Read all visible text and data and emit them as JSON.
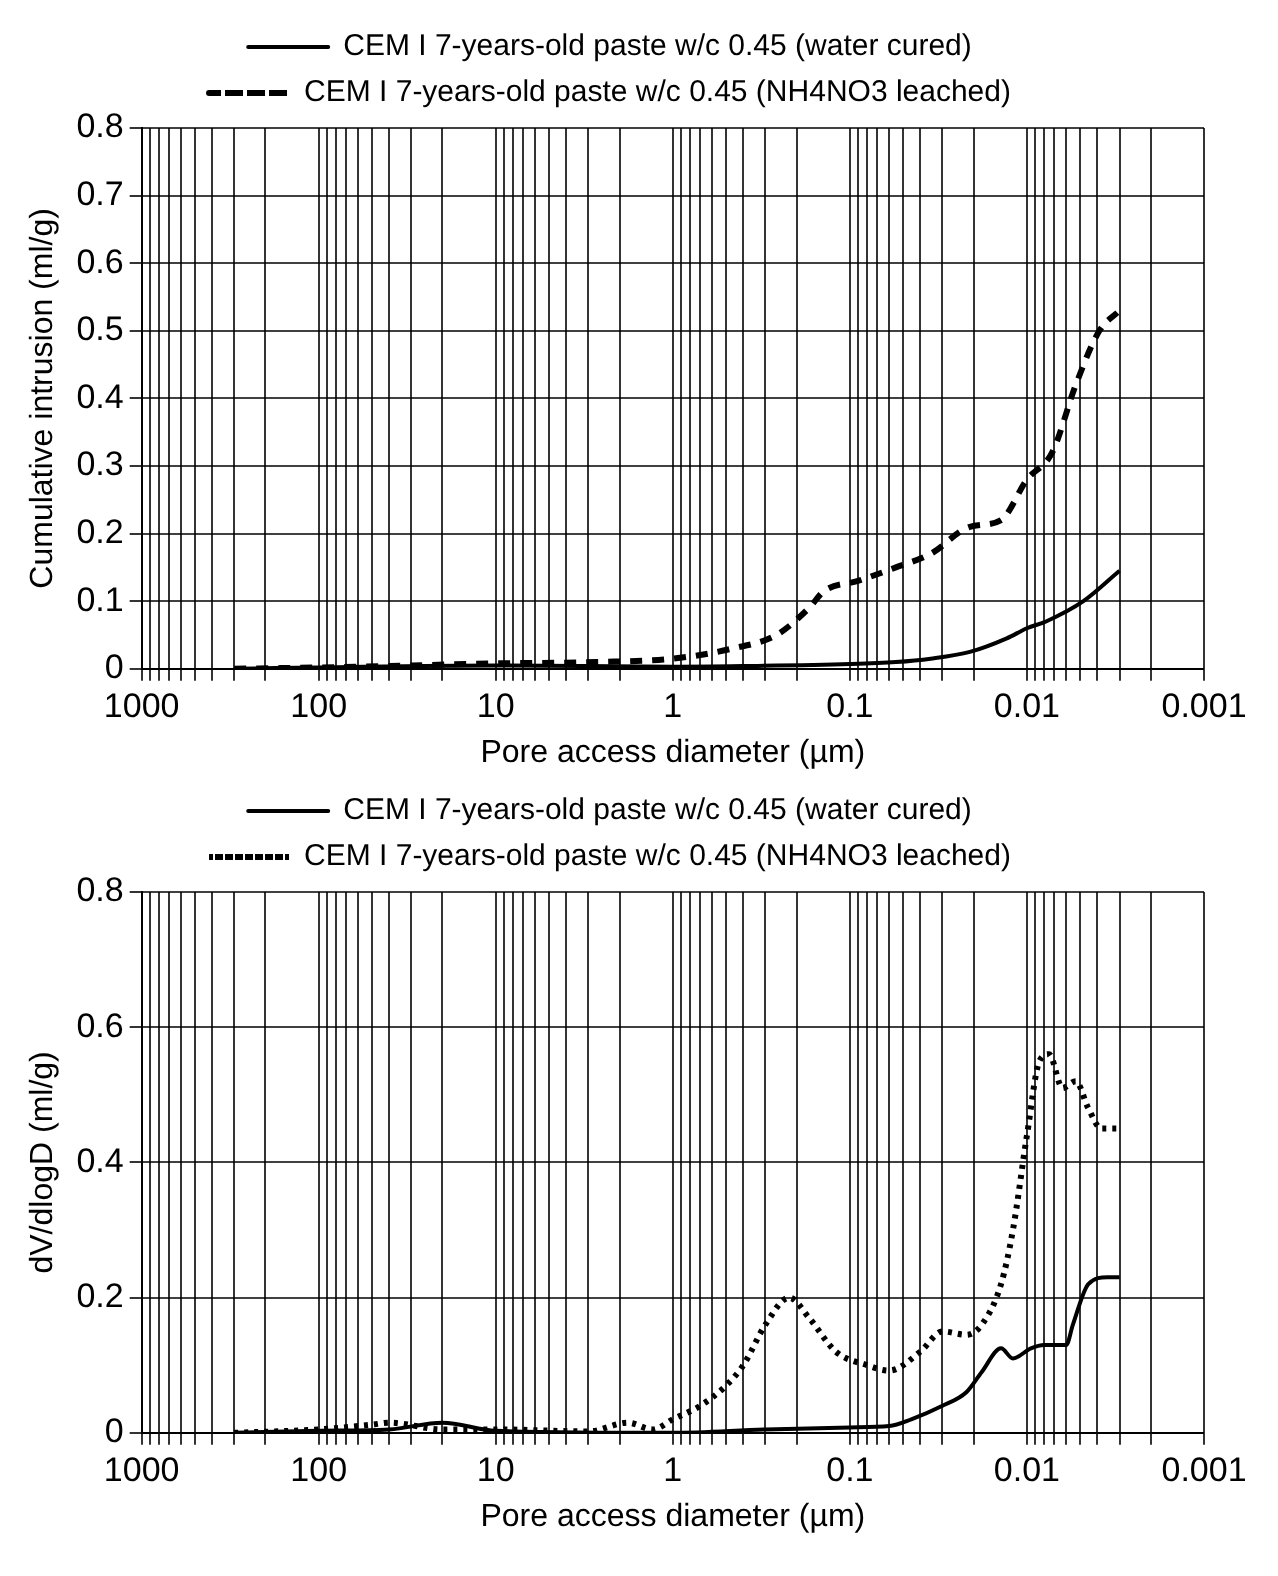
{
  "chart_data": [
    {
      "type": "line",
      "xlabel": "Pore access diameter (µm)",
      "ylabel": "Cumulative intrusion (ml/g)",
      "log": "x",
      "grid": true,
      "legend": "top",
      "marker": "none",
      "xlim": [
        1000,
        0.001
      ],
      "ylim": [
        0,
        0.8
      ],
      "xticks": [
        1000,
        {
          "value": 900,
          "label": null
        },
        {
          "value": 800,
          "label": null
        },
        {
          "value": 700,
          "label": null
        },
        {
          "value": 600,
          "label": null
        },
        {
          "value": 500,
          "label": null
        },
        {
          "value": 400,
          "label": null
        },
        {
          "value": 300,
          "label": null
        },
        {
          "value": 200,
          "label": null
        },
        100,
        {
          "value": 90,
          "label": null
        },
        {
          "value": 80,
          "label": null
        },
        {
          "value": 70,
          "label": null
        },
        {
          "value": 60,
          "label": null
        },
        {
          "value": 50,
          "label": null
        },
        {
          "value": 40,
          "label": null
        },
        {
          "value": 30,
          "label": null
        },
        {
          "value": 20,
          "label": null
        },
        10,
        {
          "value": 9,
          "label": null
        },
        {
          "value": 8,
          "label": null
        },
        {
          "value": 7,
          "label": null
        },
        {
          "value": 6,
          "label": null
        },
        {
          "value": 5,
          "label": null
        },
        {
          "value": 4,
          "label": null
        },
        {
          "value": 3,
          "label": null
        },
        {
          "value": 2,
          "label": null
        },
        1,
        {
          "value": 0.9,
          "label": null
        },
        {
          "value": 0.8,
          "label": null
        },
        {
          "value": 0.7,
          "label": null
        },
        {
          "value": 0.6,
          "label": null
        },
        {
          "value": 0.5,
          "label": null
        },
        {
          "value": 0.4,
          "label": null
        },
        {
          "value": 0.3,
          "label": null
        },
        {
          "value": 0.2,
          "label": null
        },
        0.1,
        {
          "value": 0.09,
          "label": null
        },
        {
          "value": 0.08,
          "label": null
        },
        {
          "value": 0.07,
          "label": null
        },
        {
          "value": 0.06,
          "label": null
        },
        {
          "value": 0.05,
          "label": null
        },
        {
          "value": 0.04,
          "label": null
        },
        {
          "value": 0.03,
          "label": null
        },
        {
          "value": 0.02,
          "label": null
        },
        0.01,
        {
          "value": 0.009,
          "label": null
        },
        {
          "value": 0.008,
          "label": null
        },
        {
          "value": 0.007,
          "label": null
        },
        {
          "value": 0.006,
          "label": null
        },
        {
          "value": 0.005,
          "label": null
        },
        {
          "value": 0.004,
          "label": null
        },
        {
          "value": 0.003,
          "label": null
        },
        {
          "value": 0.002,
          "label": null
        },
        0.001
      ],
      "yticks": [
        0,
        0.1,
        0.2,
        0.3,
        0.4,
        0.5,
        0.6,
        0.7,
        0.8
      ],
      "series": [
        {
          "name": "CEM I 7-years-old paste w/c 0.45 (water cured)",
          "color": "#000000",
          "line_style": "solid",
          "x": [
            300,
            100,
            10,
            1,
            0.4,
            0.1,
            0.055,
            0.035,
            0.021,
            0.013,
            0.01,
            0.0078,
            0.0048,
            0.003
          ],
          "values": [
            0,
            0.002,
            0.005,
            0.003,
            0.004,
            0.007,
            0.01,
            0.015,
            0.025,
            0.045,
            0.06,
            0.07,
            0.1,
            0.145
          ]
        },
        {
          "name": "CEM I 7-years-old paste w/c 0.45 (NH4NO3 leached)",
          "color": "#000000",
          "line_style": "dashed",
          "x": [
            300,
            100,
            30,
            10,
            2.7,
            1,
            0.46,
            0.26,
            0.17,
            0.14,
            0.09,
            0.055,
            0.035,
            0.021,
            0.014,
            0.01,
            0.0072,
            0.0053,
            0.0039,
            0.003
          ],
          "values": [
            0,
            0.002,
            0.005,
            0.008,
            0.01,
            0.015,
            0.03,
            0.05,
            0.09,
            0.115,
            0.13,
            0.15,
            0.17,
            0.21,
            0.22,
            0.28,
            0.32,
            0.42,
            0.5,
            0.53
          ]
        }
      ]
    },
    {
      "type": "line",
      "xlabel": "Pore access diameter (µm)",
      "ylabel": "dV/dlogD (ml/g)",
      "log": "x",
      "grid": true,
      "legend": "top",
      "marker": "none",
      "xlim": [
        1000,
        0.001
      ],
      "ylim": [
        0,
        0.8
      ],
      "xticks": [
        1000,
        {
          "value": 900,
          "label": null
        },
        {
          "value": 800,
          "label": null
        },
        {
          "value": 700,
          "label": null
        },
        {
          "value": 600,
          "label": null
        },
        {
          "value": 500,
          "label": null
        },
        {
          "value": 400,
          "label": null
        },
        {
          "value": 300,
          "label": null
        },
        {
          "value": 200,
          "label": null
        },
        100,
        {
          "value": 90,
          "label": null
        },
        {
          "value": 80,
          "label": null
        },
        {
          "value": 70,
          "label": null
        },
        {
          "value": 60,
          "label": null
        },
        {
          "value": 50,
          "label": null
        },
        {
          "value": 40,
          "label": null
        },
        {
          "value": 30,
          "label": null
        },
        {
          "value": 20,
          "label": null
        },
        10,
        {
          "value": 9,
          "label": null
        },
        {
          "value": 8,
          "label": null
        },
        {
          "value": 7,
          "label": null
        },
        {
          "value": 6,
          "label": null
        },
        {
          "value": 5,
          "label": null
        },
        {
          "value": 4,
          "label": null
        },
        {
          "value": 3,
          "label": null
        },
        {
          "value": 2,
          "label": null
        },
        1,
        {
          "value": 0.9,
          "label": null
        },
        {
          "value": 0.8,
          "label": null
        },
        {
          "value": 0.7,
          "label": null
        },
        {
          "value": 0.6,
          "label": null
        },
        {
          "value": 0.5,
          "label": null
        },
        {
          "value": 0.4,
          "label": null
        },
        {
          "value": 0.3,
          "label": null
        },
        {
          "value": 0.2,
          "label": null
        },
        0.1,
        {
          "value": 0.09,
          "label": null
        },
        {
          "value": 0.08,
          "label": null
        },
        {
          "value": 0.07,
          "label": null
        },
        {
          "value": 0.06,
          "label": null
        },
        {
          "value": 0.05,
          "label": null
        },
        {
          "value": 0.04,
          "label": null
        },
        {
          "value": 0.03,
          "label": null
        },
        {
          "value": 0.02,
          "label": null
        },
        0.01,
        {
          "value": 0.009,
          "label": null
        },
        {
          "value": 0.008,
          "label": null
        },
        {
          "value": 0.007,
          "label": null
        },
        {
          "value": 0.006,
          "label": null
        },
        {
          "value": 0.005,
          "label": null
        },
        {
          "value": 0.004,
          "label": null
        },
        {
          "value": 0.003,
          "label": null
        },
        {
          "value": 0.002,
          "label": null
        },
        0.001
      ],
      "yticks": [
        0,
        0.2,
        0.4,
        0.6,
        0.8
      ],
      "series": [
        {
          "name": "CEM I 7-years-old paste w/c 0.45 (water cured)",
          "color": "#000000",
          "line_style": "solid",
          "x": [
            300,
            100,
            40,
            20,
            10,
            1,
            0.3,
            0.1,
            0.06,
            0.045,
            0.03,
            0.022,
            0.018,
            0.014,
            0.012,
            0.0095,
            0.008,
            0.006,
            0.0055,
            0.0045,
            0.0035,
            0.003
          ],
          "values": [
            0,
            0.003,
            0.005,
            0.015,
            0.003,
            0,
            0.005,
            0.008,
            0.01,
            0.02,
            0.04,
            0.06,
            0.09,
            0.125,
            0.11,
            0.125,
            0.13,
            0.13,
            0.16,
            0.22,
            0.23,
            0.23
          ]
        },
        {
          "name": "CEM I 7-years-old paste w/c 0.45 (NH4NO3 leached)",
          "color": "#000000",
          "line_style": "dotted",
          "x": [
            300,
            100,
            50,
            40,
            20,
            10,
            3,
            1.8,
            1.3,
            1,
            0.7,
            0.5,
            0.4,
            0.3,
            0.22,
            0.17,
            0.12,
            0.08,
            0.06,
            0.04,
            0.03,
            0.022,
            0.018,
            0.014,
            0.012,
            0.01,
            0.0085,
            0.0075,
            0.0063,
            0.0053,
            0.0045,
            0.0038,
            0.003
          ],
          "values": [
            0,
            0.005,
            0.012,
            0.015,
            0.005,
            0.005,
            0.002,
            0.015,
            0.005,
            0.02,
            0.04,
            0.07,
            0.1,
            0.16,
            0.2,
            0.17,
            0.12,
            0.1,
            0.092,
            0.12,
            0.15,
            0.145,
            0.16,
            0.22,
            0.3,
            0.44,
            0.55,
            0.56,
            0.51,
            0.52,
            0.48,
            0.45,
            0.45
          ]
        }
      ]
    }
  ]
}
